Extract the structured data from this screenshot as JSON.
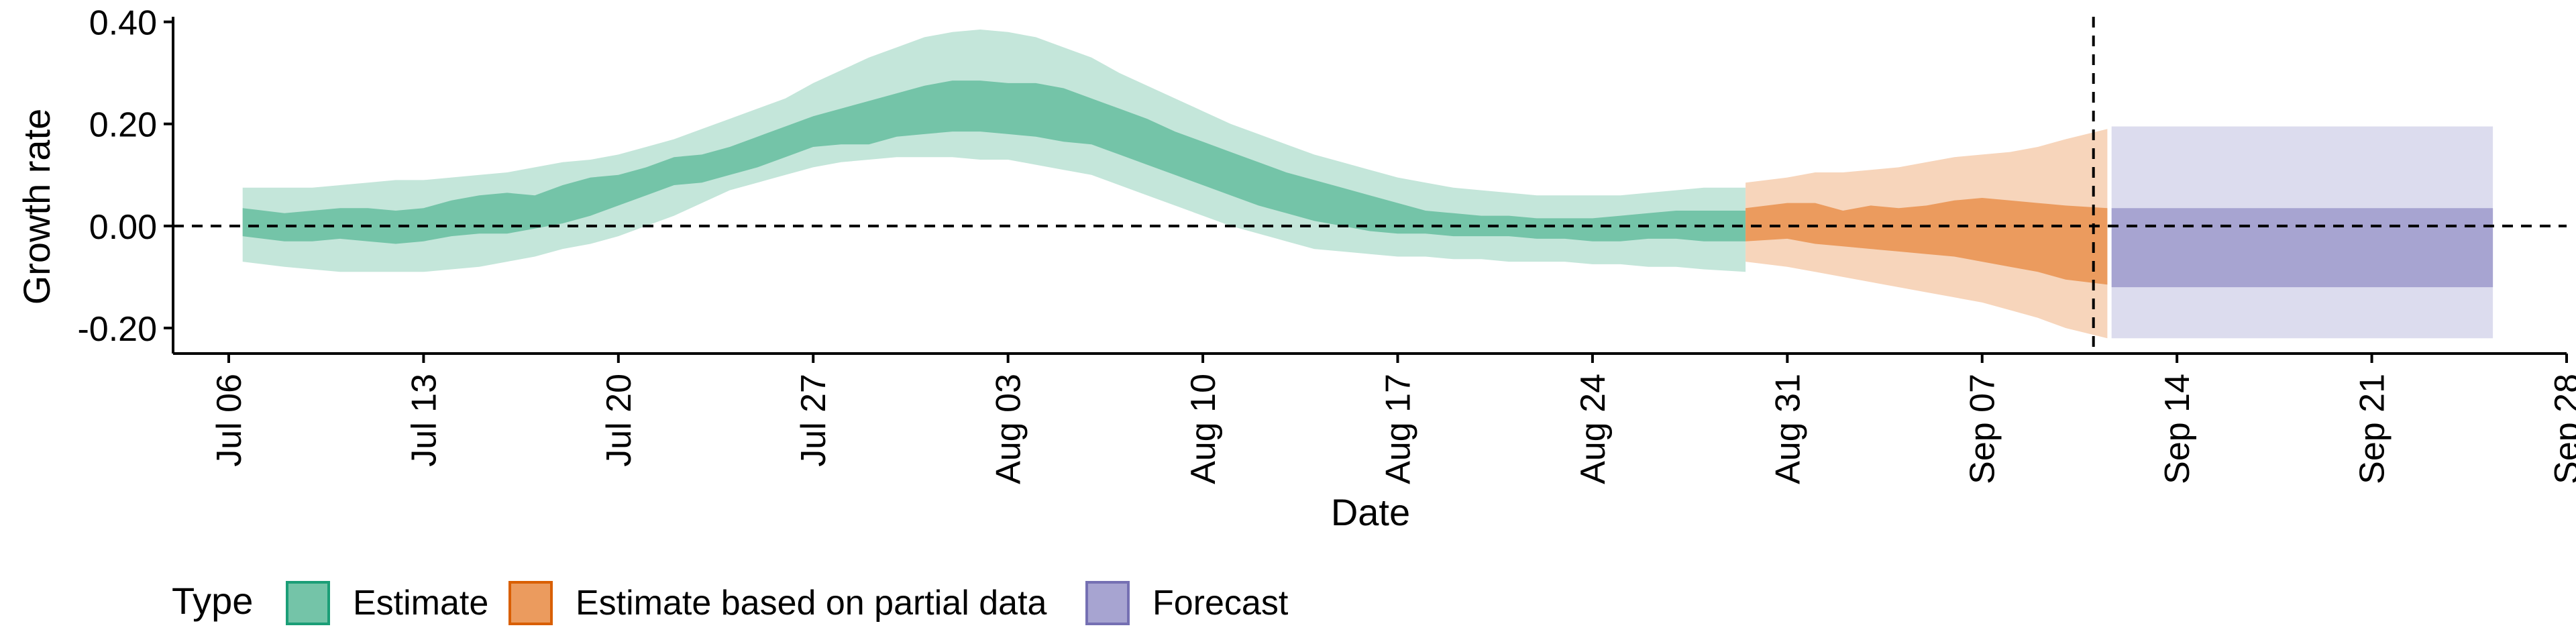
{
  "chart_data": {
    "type": "area",
    "xlabel": "Date",
    "ylabel": "Growth rate",
    "ylim": [
      -0.25,
      0.41
    ],
    "xlim": [
      "2020-07-04",
      "2020-09-28"
    ],
    "y_ticks": [
      -0.2,
      0.0,
      0.2,
      0.4
    ],
    "y_tick_labels": [
      "-0.20",
      "0.00",
      "0.20",
      "0.40"
    ],
    "x_ticks": [
      "2020-07-06",
      "2020-07-13",
      "2020-07-20",
      "2020-07-27",
      "2020-08-03",
      "2020-08-10",
      "2020-08-17",
      "2020-08-24",
      "2020-08-31",
      "2020-09-07",
      "2020-09-14",
      "2020-09-21",
      "2020-09-28"
    ],
    "x_tick_labels": [
      "Jul 06",
      "Jul 13",
      "Jul 20",
      "Jul 27",
      "Aug 03",
      "Aug 10",
      "Aug 17",
      "Aug 24",
      "Aug 31",
      "Sep 07",
      "Sep 14",
      "Sep 21",
      "Sep 28"
    ],
    "grid": false,
    "reference_lines": [
      {
        "axis": "y",
        "value": 0,
        "style": "dashed"
      },
      {
        "axis": "x",
        "value": "2020-09-11",
        "style": "dashed"
      }
    ],
    "legend": {
      "title": "Type",
      "position": "bottom-left",
      "entries": [
        "Estimate",
        "Estimate based on partial data",
        "Forecast"
      ]
    },
    "colors": {
      "Estimate": {
        "inner": "#74c4a8",
        "outer": "#c4e6da",
        "border": "#1b9e77"
      },
      "Estimate based on partial data": {
        "inner": "#eb9b5e",
        "outer": "#f7d5bb",
        "border": "#d95f02"
      },
      "Forecast": {
        "inner": "#a7a4d1",
        "outer": "#dcdcee",
        "border": "#7570b3"
      }
    },
    "series": [
      {
        "name": "Estimate",
        "x": [
          "2020-07-07",
          "2020-07-08",
          "2020-07-09",
          "2020-07-10",
          "2020-07-11",
          "2020-07-12",
          "2020-07-13",
          "2020-07-14",
          "2020-07-15",
          "2020-07-16",
          "2020-07-17",
          "2020-07-18",
          "2020-07-19",
          "2020-07-20",
          "2020-07-21",
          "2020-07-22",
          "2020-07-23",
          "2020-07-24",
          "2020-07-25",
          "2020-07-26",
          "2020-07-27",
          "2020-07-28",
          "2020-07-29",
          "2020-07-30",
          "2020-07-31",
          "2020-08-01",
          "2020-08-02",
          "2020-08-03",
          "2020-08-04",
          "2020-08-05",
          "2020-08-06",
          "2020-08-07",
          "2020-08-08",
          "2020-08-09",
          "2020-08-10",
          "2020-08-11",
          "2020-08-12",
          "2020-08-13",
          "2020-08-14",
          "2020-08-15",
          "2020-08-16",
          "2020-08-17",
          "2020-08-18",
          "2020-08-19",
          "2020-08-20",
          "2020-08-21",
          "2020-08-22",
          "2020-08-23",
          "2020-08-24",
          "2020-08-25",
          "2020-08-26",
          "2020-08-27",
          "2020-08-28",
          "2020-08-29"
        ],
        "lower_90": [
          -0.07,
          -0.08,
          -0.085,
          -0.09,
          -0.09,
          -0.09,
          -0.09,
          -0.085,
          -0.08,
          -0.07,
          -0.06,
          -0.045,
          -0.035,
          -0.02,
          0.0,
          0.02,
          0.045,
          0.07,
          0.085,
          0.1,
          0.115,
          0.125,
          0.13,
          0.135,
          0.135,
          0.135,
          0.13,
          0.13,
          0.12,
          0.11,
          0.1,
          0.08,
          0.06,
          0.04,
          0.02,
          0.0,
          -0.015,
          -0.03,
          -0.045,
          -0.05,
          -0.055,
          -0.06,
          -0.06,
          -0.065,
          -0.065,
          -0.07,
          -0.07,
          -0.07,
          -0.075,
          -0.075,
          -0.08,
          -0.08,
          -0.085,
          -0.09
        ],
        "lower_50": [
          -0.02,
          -0.03,
          -0.03,
          -0.025,
          -0.03,
          -0.035,
          -0.03,
          -0.02,
          -0.015,
          -0.015,
          -0.005,
          0.005,
          0.02,
          0.04,
          0.06,
          0.08,
          0.085,
          0.1,
          0.115,
          0.135,
          0.155,
          0.16,
          0.16,
          0.175,
          0.18,
          0.185,
          0.185,
          0.18,
          0.175,
          0.165,
          0.16,
          0.14,
          0.12,
          0.1,
          0.08,
          0.06,
          0.04,
          0.025,
          0.01,
          0.0,
          -0.01,
          -0.015,
          -0.015,
          -0.02,
          -0.02,
          -0.02,
          -0.025,
          -0.025,
          -0.03,
          -0.03,
          -0.025,
          -0.025,
          -0.03,
          -0.03
        ],
        "upper_50": [
          0.035,
          0.025,
          0.03,
          0.035,
          0.035,
          0.03,
          0.035,
          0.05,
          0.06,
          0.065,
          0.06,
          0.08,
          0.095,
          0.1,
          0.115,
          0.135,
          0.14,
          0.155,
          0.175,
          0.195,
          0.215,
          0.23,
          0.245,
          0.26,
          0.275,
          0.285,
          0.285,
          0.28,
          0.28,
          0.27,
          0.25,
          0.23,
          0.21,
          0.185,
          0.165,
          0.145,
          0.125,
          0.105,
          0.09,
          0.075,
          0.06,
          0.045,
          0.03,
          0.025,
          0.02,
          0.02,
          0.015,
          0.015,
          0.015,
          0.02,
          0.025,
          0.03,
          0.03,
          0.03
        ],
        "upper_90": [
          0.075,
          0.075,
          0.075,
          0.08,
          0.085,
          0.09,
          0.09,
          0.095,
          0.1,
          0.105,
          0.115,
          0.125,
          0.13,
          0.14,
          0.155,
          0.17,
          0.19,
          0.21,
          0.23,
          0.25,
          0.28,
          0.305,
          0.33,
          0.35,
          0.37,
          0.38,
          0.385,
          0.38,
          0.37,
          0.35,
          0.33,
          0.3,
          0.275,
          0.25,
          0.225,
          0.2,
          0.18,
          0.16,
          0.14,
          0.125,
          0.11,
          0.095,
          0.085,
          0.075,
          0.07,
          0.065,
          0.06,
          0.06,
          0.06,
          0.06,
          0.065,
          0.07,
          0.075,
          0.075
        ]
      },
      {
        "name": "Estimate based on partial data",
        "x": [
          "2020-08-30",
          "2020-08-31",
          "2020-09-01",
          "2020-09-02",
          "2020-09-03",
          "2020-09-04",
          "2020-09-05",
          "2020-09-06",
          "2020-09-07",
          "2020-09-08",
          "2020-09-09",
          "2020-09-10",
          "2020-09-11"
        ],
        "lower_90": [
          -0.07,
          -0.08,
          -0.09,
          -0.1,
          -0.11,
          -0.12,
          -0.13,
          -0.14,
          -0.15,
          -0.165,
          -0.18,
          -0.2,
          -0.22
        ],
        "lower_50": [
          -0.03,
          -0.025,
          -0.035,
          -0.04,
          -0.045,
          -0.05,
          -0.055,
          -0.06,
          -0.07,
          -0.08,
          -0.09,
          -0.105,
          -0.115
        ],
        "upper_50": [
          0.035,
          0.045,
          0.045,
          0.03,
          0.04,
          0.035,
          0.04,
          0.05,
          0.055,
          0.05,
          0.045,
          0.04,
          0.035
        ],
        "upper_90": [
          0.085,
          0.095,
          0.105,
          0.105,
          0.11,
          0.115,
          0.125,
          0.135,
          0.14,
          0.145,
          0.155,
          0.17,
          0.19
        ]
      },
      {
        "name": "Forecast",
        "x": [
          "2020-09-12",
          "2020-09-25"
        ],
        "lower_90": [
          -0.22,
          -0.22
        ],
        "lower_50": [
          -0.12,
          -0.12
        ],
        "upper_50": [
          0.035,
          0.035
        ],
        "upper_90": [
          0.195,
          0.195
        ]
      }
    ]
  }
}
